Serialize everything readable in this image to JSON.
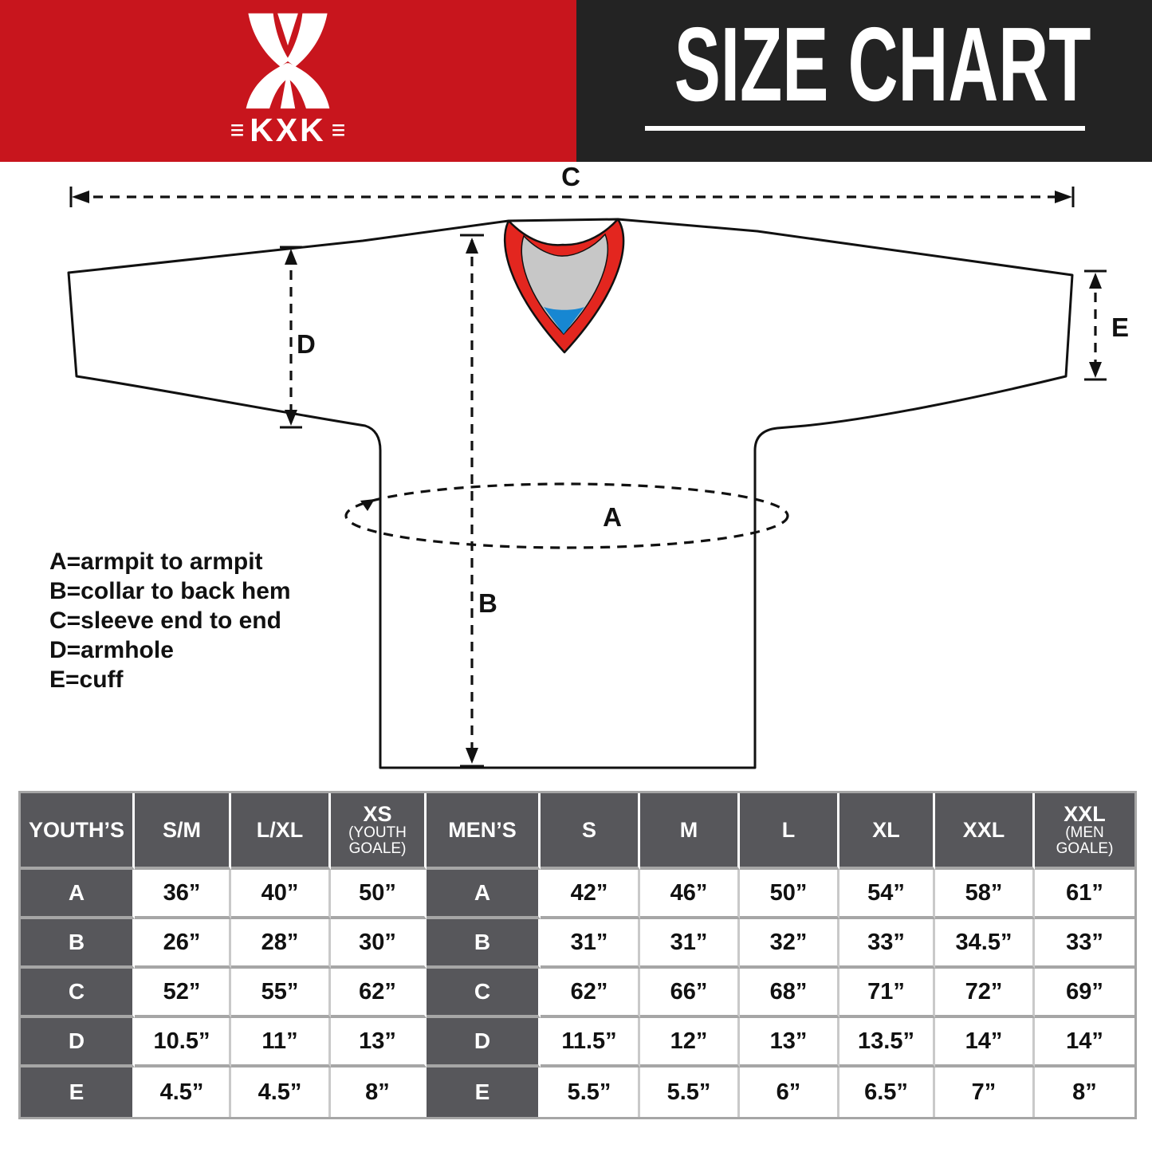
{
  "header": {
    "logo": {
      "bars": "≡",
      "text": "KXK"
    },
    "title": "SIZE CHART"
  },
  "colors": {
    "banner_red": "#C8151D",
    "banner_dark": "#232323",
    "collar_red": "#E3261F",
    "collar_gray": "#C7C7C7",
    "collar_blue": "#1787D2",
    "table_header_gray": "#57575B",
    "grid_line_gray": "#A6A6A6"
  },
  "diagram": {
    "dimension_labels": {
      "a": "A",
      "b": "B",
      "c": "C",
      "d": "D",
      "e": "E"
    },
    "legend": [
      "A=armpit to armpit",
      "B=collar to back hem",
      "C=sleeve end to end",
      "D=armhole",
      "E=cuff"
    ]
  },
  "table": {
    "columns": [
      {
        "label": "YOUTH’S",
        "sub": ""
      },
      {
        "label": "S/M",
        "sub": ""
      },
      {
        "label": "L/XL",
        "sub": ""
      },
      {
        "label": "XS",
        "sub": "(YOUTH GOALE)"
      },
      {
        "label": "MEN’S",
        "sub": ""
      },
      {
        "label": "S",
        "sub": ""
      },
      {
        "label": "M",
        "sub": ""
      },
      {
        "label": "L",
        "sub": ""
      },
      {
        "label": "XL",
        "sub": ""
      },
      {
        "label": "XXL",
        "sub": ""
      },
      {
        "label": "XXL",
        "sub": "(MEN GOALE)"
      }
    ],
    "rows": [
      {
        "youth_label": "A",
        "youth": [
          "36”",
          "40”",
          "50”"
        ],
        "men_label": "A",
        "men": [
          "42”",
          "46”",
          "50”",
          "54”",
          "58”",
          "61”"
        ]
      },
      {
        "youth_label": "B",
        "youth": [
          "26”",
          "28”",
          "30”"
        ],
        "men_label": "B",
        "men": [
          "31”",
          "31”",
          "32”",
          "33”",
          "34.5”",
          "33”"
        ]
      },
      {
        "youth_label": "C",
        "youth": [
          "52”",
          "55”",
          "62”"
        ],
        "men_label": "C",
        "men": [
          "62”",
          "66”",
          "68”",
          "71”",
          "72”",
          "69”"
        ]
      },
      {
        "youth_label": "D",
        "youth": [
          "10.5”",
          "11”",
          "13”"
        ],
        "men_label": "D",
        "men": [
          "11.5”",
          "12”",
          "13”",
          "13.5”",
          "14”",
          "14”"
        ]
      },
      {
        "youth_label": "E",
        "youth": [
          "4.5”",
          "4.5”",
          "8”"
        ],
        "men_label": "E",
        "men": [
          "5.5”",
          "5.5”",
          "6”",
          "6.5”",
          "7”",
          "8”"
        ]
      }
    ]
  }
}
